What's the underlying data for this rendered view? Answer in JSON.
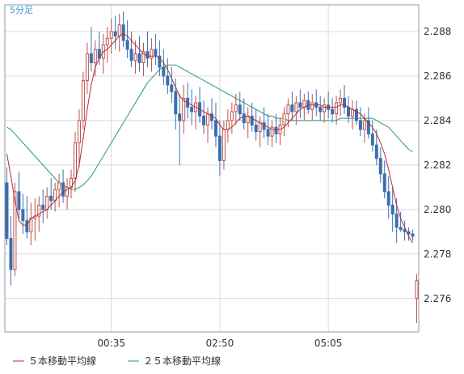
{
  "chart_data": {
    "type": "candlestick",
    "timeframe_label": "5分足",
    "ylim": [
      2.2745,
      2.2892
    ],
    "y_ticks": [
      "2.288",
      "2.286",
      "2.284",
      "2.282",
      "2.280",
      "2.278",
      "2.276"
    ],
    "y_tick_values": [
      2.288,
      2.286,
      2.284,
      2.282,
      2.28,
      2.278,
      2.276
    ],
    "x_ticks": [
      {
        "label": "00:35",
        "index": 26
      },
      {
        "label": "02:50",
        "index": 53
      },
      {
        "label": "05:05",
        "index": 80
      }
    ],
    "grid": true,
    "candle_count": 103,
    "colors": {
      "up": "#c0504d",
      "down": "#3b6fb0",
      "ma5": "#b03030",
      "ma25": "#2a9a6e",
      "grid": "#d8d8d8",
      "timeframe": "#3aa0d8"
    },
    "candles": [
      [
        2.2812,
        2.2819,
        2.2784,
        2.2787
      ],
      [
        2.2787,
        2.2797,
        2.2766,
        2.2773
      ],
      [
        2.2773,
        2.2812,
        2.277,
        2.2808
      ],
      [
        2.2808,
        2.2817,
        2.2796,
        2.28
      ],
      [
        2.28,
        2.2807,
        2.2789,
        2.2795
      ],
      [
        2.2795,
        2.2806,
        2.2787,
        2.279
      ],
      [
        2.279,
        2.2803,
        2.2784,
        2.2796
      ],
      [
        2.2796,
        2.2805,
        2.2786,
        2.2797
      ],
      [
        2.2797,
        2.2806,
        2.279,
        2.2802
      ],
      [
        2.2802,
        2.2809,
        2.2794,
        2.28
      ],
      [
        2.28,
        2.281,
        2.2796,
        2.2806
      ],
      [
        2.2806,
        2.2814,
        2.28,
        2.2804
      ],
      [
        2.2804,
        2.2812,
        2.2799,
        2.2809
      ],
      [
        2.2809,
        2.2816,
        2.2801,
        2.2812
      ],
      [
        2.2812,
        2.2818,
        2.2803,
        2.2806
      ],
      [
        2.2806,
        2.2814,
        2.28,
        2.281
      ],
      [
        2.281,
        2.2818,
        2.2805,
        2.2814
      ],
      [
        2.2814,
        2.2835,
        2.2808,
        2.283
      ],
      [
        2.283,
        2.2845,
        2.2819,
        2.284
      ],
      [
        2.284,
        2.2862,
        2.2836,
        2.2858
      ],
      [
        2.2858,
        2.2875,
        2.2852,
        2.287
      ],
      [
        2.287,
        2.2882,
        2.2862,
        2.2866
      ],
      [
        2.2866,
        2.2876,
        2.286,
        2.2872
      ],
      [
        2.2872,
        2.288,
        2.2865,
        2.2868
      ],
      [
        2.2868,
        2.2879,
        2.2861,
        2.2874
      ],
      [
        2.2874,
        2.2882,
        2.2866,
        2.2877
      ],
      [
        2.2877,
        2.2886,
        2.287,
        2.288
      ],
      [
        2.288,
        2.2887,
        2.2872,
        2.2878
      ],
      [
        2.2878,
        2.2888,
        2.2871,
        2.2883
      ],
      [
        2.2883,
        2.2889,
        2.2873,
        2.2876
      ],
      [
        2.2876,
        2.2885,
        2.2868,
        2.2872
      ],
      [
        2.2872,
        2.288,
        2.2864,
        2.2867
      ],
      [
        2.2867,
        2.2876,
        2.2861,
        2.287
      ],
      [
        2.287,
        2.2878,
        2.2862,
        2.2866
      ],
      [
        2.2866,
        2.2875,
        2.286,
        2.2871
      ],
      [
        2.2871,
        2.288,
        2.2864,
        2.2868
      ],
      [
        2.2868,
        2.2877,
        2.2862,
        2.2872
      ],
      [
        2.2872,
        2.2879,
        2.2865,
        2.2869
      ],
      [
        2.2869,
        2.2876,
        2.286,
        2.2864
      ],
      [
        2.2864,
        2.2872,
        2.2856,
        2.286
      ],
      [
        2.286,
        2.2868,
        2.2852,
        2.2856
      ],
      [
        2.2856,
        2.2864,
        2.2848,
        2.2853
      ],
      [
        2.2853,
        2.2859,
        2.2836,
        2.2843
      ],
      [
        2.2843,
        2.2852,
        2.282,
        2.284
      ],
      [
        2.284,
        2.2856,
        2.2834,
        2.285
      ],
      [
        2.285,
        2.2857,
        2.2841,
        2.2846
      ],
      [
        2.2846,
        2.2854,
        2.2838,
        2.2844
      ],
      [
        2.2844,
        2.2851,
        2.2836,
        2.2848
      ],
      [
        2.2848,
        2.2855,
        2.2839,
        2.2842
      ],
      [
        2.2842,
        2.2849,
        2.2834,
        2.2838
      ],
      [
        2.2838,
        2.2846,
        2.283,
        2.2843
      ],
      [
        2.2843,
        2.285,
        2.2836,
        2.284
      ],
      [
        2.284,
        2.2848,
        2.2828,
        2.2833
      ],
      [
        2.2833,
        2.284,
        2.2815,
        2.2822
      ],
      [
        2.2822,
        2.284,
        2.2818,
        2.2836
      ],
      [
        2.2836,
        2.2845,
        2.283,
        2.284
      ],
      [
        2.284,
        2.2848,
        2.2834,
        2.2844
      ],
      [
        2.2844,
        2.2852,
        2.2838,
        2.2847
      ],
      [
        2.2847,
        2.2853,
        2.284,
        2.2843
      ],
      [
        2.2843,
        2.285,
        2.2836,
        2.2839
      ],
      [
        2.2839,
        2.2846,
        2.2832,
        2.2842
      ],
      [
        2.2842,
        2.2848,
        2.2835,
        2.2838
      ],
      [
        2.2838,
        2.2845,
        2.2831,
        2.2835
      ],
      [
        2.2835,
        2.2842,
        2.2828,
        2.2839
      ],
      [
        2.2839,
        2.2846,
        2.2832,
        2.2836
      ],
      [
        2.2836,
        2.2843,
        2.2829,
        2.2833
      ],
      [
        2.2833,
        2.284,
        2.2828,
        2.2837
      ],
      [
        2.2837,
        2.2843,
        2.283,
        2.2834
      ],
      [
        2.2834,
        2.2841,
        2.2829,
        2.2838
      ],
      [
        2.2838,
        2.2846,
        2.2833,
        2.2843
      ],
      [
        2.2843,
        2.285,
        2.2837,
        2.2847
      ],
      [
        2.2847,
        2.2853,
        2.284,
        2.2844
      ],
      [
        2.2844,
        2.2851,
        2.2838,
        2.2848
      ],
      [
        2.2848,
        2.2854,
        2.2841,
        2.2846
      ],
      [
        2.2846,
        2.2852,
        2.284,
        2.2849
      ],
      [
        2.2849,
        2.2853,
        2.2843,
        2.2845
      ],
      [
        2.2845,
        2.2852,
        2.284,
        2.2848
      ],
      [
        2.2848,
        2.2854,
        2.2842,
        2.2846
      ],
      [
        2.2846,
        2.2851,
        2.284,
        2.2844
      ],
      [
        2.2844,
        2.285,
        2.2839,
        2.2847
      ],
      [
        2.2847,
        2.2853,
        2.2841,
        2.2845
      ],
      [
        2.2845,
        2.285,
        2.2839,
        2.2843
      ],
      [
        2.2843,
        2.2851,
        2.2838,
        2.2848
      ],
      [
        2.2848,
        2.2854,
        2.2842,
        2.285
      ],
      [
        2.285,
        2.2856,
        2.2843,
        2.2846
      ],
      [
        2.2846,
        2.2851,
        2.2839,
        2.2842
      ],
      [
        2.2842,
        2.2849,
        2.2836,
        2.2845
      ],
      [
        2.2845,
        2.2849,
        2.2838,
        2.284
      ],
      [
        2.284,
        2.2846,
        2.2833,
        2.2836
      ],
      [
        2.2836,
        2.2843,
        2.283,
        2.284
      ],
      [
        2.284,
        2.2846,
        2.2832,
        2.2834
      ],
      [
        2.2834,
        2.284,
        2.2826,
        2.2829
      ],
      [
        2.2829,
        2.2836,
        2.282,
        2.2823
      ],
      [
        2.2823,
        2.2828,
        2.2812,
        2.2816
      ],
      [
        2.2816,
        2.2822,
        2.2805,
        2.2808
      ],
      [
        2.2808,
        2.2815,
        2.2796,
        2.2802
      ],
      [
        2.2802,
        2.281,
        2.279,
        2.2798
      ],
      [
        2.2798,
        2.2805,
        2.2785,
        2.2792
      ],
      [
        2.2792,
        2.2799,
        2.279,
        2.2791
      ],
      [
        2.2791,
        2.2795,
        2.2786,
        2.279
      ],
      [
        2.279,
        2.2792,
        2.2786,
        2.2789
      ],
      [
        2.2789,
        2.2791,
        2.2786,
        2.2788
      ],
      [
        2.276,
        2.2771,
        2.2749,
        2.2768
      ]
    ],
    "gap_indices": [
      90
    ],
    "series": [
      {
        "name": "５本移動平均線",
        "color": "#b03030",
        "values": [
          2.2825,
          2.2815,
          2.2804,
          2.2795,
          2.2793,
          2.2793,
          2.2796,
          2.2797,
          2.2798,
          2.2799,
          2.28,
          2.2802,
          2.2804,
          2.2806,
          2.2808,
          2.2809,
          2.281,
          2.2813,
          2.282,
          2.2832,
          2.2845,
          2.2856,
          2.2864,
          2.2868,
          2.2871,
          2.2872,
          2.2874,
          2.2876,
          2.2878,
          2.2879,
          2.2878,
          2.2876,
          2.2874,
          2.2872,
          2.287,
          2.2869,
          2.2869,
          2.2869,
          2.2868,
          2.2866,
          2.2863,
          2.2859,
          2.2855,
          2.2851,
          2.2849,
          2.2848,
          2.2847,
          2.2846,
          2.2845,
          2.2844,
          2.2843,
          2.2842,
          2.2841,
          2.2838,
          2.2836,
          2.2836,
          2.2837,
          2.2839,
          2.2841,
          2.2842,
          2.2842,
          2.2841,
          2.284,
          2.2839,
          2.2838,
          2.2837,
          2.2836,
          2.2836,
          2.2836,
          2.2837,
          2.2839,
          2.2841,
          2.2843,
          2.2845,
          2.2846,
          2.2847,
          2.2847,
          2.2847,
          2.2847,
          2.2846,
          2.2846,
          2.2846,
          2.2846,
          2.2847,
          2.2847,
          2.2846,
          2.2845,
          2.2844,
          2.2843,
          2.2841,
          2.2839,
          2.2837,
          2.2834,
          2.283,
          2.2825,
          2.2818,
          2.281,
          2.2802,
          2.2796,
          2.2792,
          2.2788,
          2.2785,
          2.2781
        ]
      },
      {
        "name": "２５本移動平均線",
        "color": "#2a9a6e",
        "values": [
          2.2837,
          2.2836,
          2.2834,
          2.2832,
          2.283,
          2.2828,
          2.2826,
          2.2824,
          2.2822,
          2.282,
          2.2818,
          2.2816,
          2.2814,
          2.2812,
          2.2811,
          2.281,
          2.2809,
          2.2809,
          2.281,
          2.2811,
          2.2813,
          2.2815,
          2.2818,
          2.2821,
          2.2824,
          2.2827,
          2.283,
          2.2833,
          2.2836,
          2.2839,
          2.2842,
          2.2845,
          2.2848,
          2.2851,
          2.2854,
          2.2857,
          2.2859,
          2.2861,
          2.2863,
          2.2864,
          2.2865,
          2.2865,
          2.2865,
          2.2864,
          2.2863,
          2.2862,
          2.2861,
          2.286,
          2.2859,
          2.2858,
          2.2857,
          2.2856,
          2.2855,
          2.2854,
          2.2853,
          2.2852,
          2.2851,
          2.285,
          2.2849,
          2.2848,
          2.2847,
          2.2846,
          2.2845,
          2.2844,
          2.2843,
          2.2842,
          2.2842,
          2.2841,
          2.2841,
          2.2841,
          2.284,
          2.284,
          2.284,
          2.284,
          2.284,
          2.284,
          2.284,
          2.284,
          2.284,
          2.284,
          2.284,
          2.284,
          2.284,
          2.2841,
          2.2841,
          2.2841,
          2.2841,
          2.2841,
          2.2841,
          2.2841,
          2.2841,
          2.2841,
          2.284,
          2.2839,
          2.2838,
          2.2837,
          2.2835,
          2.2833,
          2.2831,
          2.2829,
          2.2827,
          2.2826,
          2.2825
        ]
      }
    ]
  }
}
